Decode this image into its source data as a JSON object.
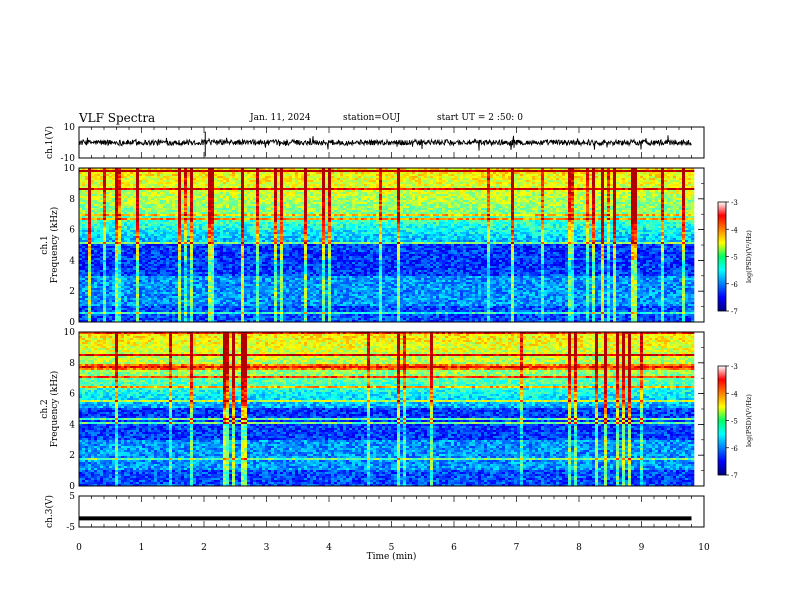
{
  "header": {
    "title": "VLF Spectra",
    "date": "Jan. 11, 2024",
    "station": "station=OUJ",
    "start": "start UT =  2 :50: 0"
  },
  "chart_data": [
    {
      "type": "line",
      "panel": "waveform-ch1",
      "ylabel": "ch.1(V)",
      "yticks": [
        "10",
        "-10"
      ],
      "ylim": [
        -10,
        10
      ],
      "xlim": [
        0,
        10
      ],
      "data_extent_min": [
        0,
        9.8
      ],
      "trace": "noisy waveform centred near 0 V, typical amplitude about ±2 V, spikes to about ±6 V"
    },
    {
      "type": "heatmap",
      "panel": "spectrogram-ch1",
      "ylabel": "ch.1\nFrequency (kHz)",
      "yticks": [
        "0",
        "2",
        "4",
        "6",
        "8",
        "10"
      ],
      "ylim": [
        0,
        10
      ],
      "xlim": [
        0,
        10
      ],
      "data_extent_min": [
        0,
        9.8
      ],
      "colorbar": {
        "label": "log(PSD)(V²/Hz)",
        "ticks": [
          "-3",
          "-4",
          "-5",
          "-6",
          "-7"
        ],
        "range": [
          -7,
          -3
        ],
        "colormap": "jet"
      }
    },
    {
      "type": "heatmap",
      "panel": "spectrogram-ch2",
      "ylabel": "ch.2\nFrequency (kHz)",
      "yticks": [
        "0",
        "2",
        "4",
        "6",
        "8",
        "10"
      ],
      "ylim": [
        0,
        10
      ],
      "xlim": [
        0,
        10
      ],
      "data_extent_min": [
        0,
        9.8
      ],
      "colorbar": {
        "label": "log(PSD)(V²/Hz)",
        "ticks": [
          "-3",
          "-4",
          "-5",
          "-6",
          "-7"
        ],
        "range": [
          -7,
          -3
        ],
        "colormap": "jet"
      }
    },
    {
      "type": "line",
      "panel": "waveform-ch3",
      "ylabel": "ch.3(V)",
      "yticks": [
        "5",
        "-5"
      ],
      "ylim": [
        -5,
        5
      ],
      "xlim": [
        0,
        10
      ],
      "data_extent_min": [
        0,
        9.8
      ],
      "constant_level_v": -2.2,
      "xlabel": "Time (min)",
      "xticks": [
        "0",
        "1",
        "2",
        "3",
        "4",
        "5",
        "6",
        "7",
        "8",
        "9",
        "10"
      ]
    }
  ]
}
